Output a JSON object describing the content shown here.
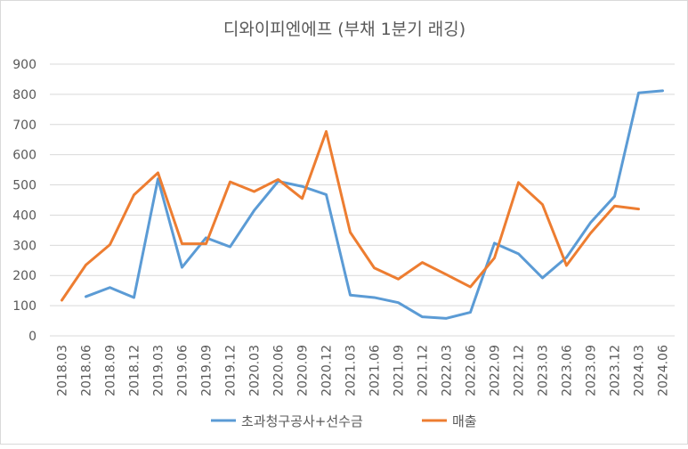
{
  "chart_data": {
    "type": "line",
    "title": "디와이피엔에프 (부채 1분기 래깅)",
    "xlabel": "",
    "ylabel": "",
    "ylim": [
      0,
      900
    ],
    "yticks": [
      0,
      100,
      200,
      300,
      400,
      500,
      600,
      700,
      800,
      900
    ],
    "grid": true,
    "legend_position": "bottom",
    "categories": [
      "2018.03",
      "2018.06",
      "2018.09",
      "2018.12",
      "2019.03",
      "2019.06",
      "2019.09",
      "2019.12",
      "2020.03",
      "2020.06",
      "2020.09",
      "2020.12",
      "2021.03",
      "2021.06",
      "2021.09",
      "2021.12",
      "2022.03",
      "2022.06",
      "2022.09",
      "2022.12",
      "2023.03",
      "2023.06",
      "2023.09",
      "2023.12",
      "2024.03",
      "2024.06"
    ],
    "series": [
      {
        "name": "초과청구공사+선수금",
        "color": "#5b9bd5",
        "values": [
          null,
          130,
          160,
          127,
          520,
          227,
          325,
          295,
          415,
          512,
          495,
          468,
          135,
          127,
          110,
          63,
          58,
          78,
          307,
          272,
          192,
          260,
          375,
          462,
          805,
          812
        ]
      },
      {
        "name": "매출",
        "color": "#ed7d31",
        "values": [
          118,
          235,
          302,
          467,
          540,
          305,
          305,
          510,
          478,
          518,
          455,
          677,
          343,
          225,
          188,
          243,
          203,
          162,
          258,
          508,
          435,
          233,
          340,
          430,
          420,
          null
        ]
      }
    ]
  }
}
